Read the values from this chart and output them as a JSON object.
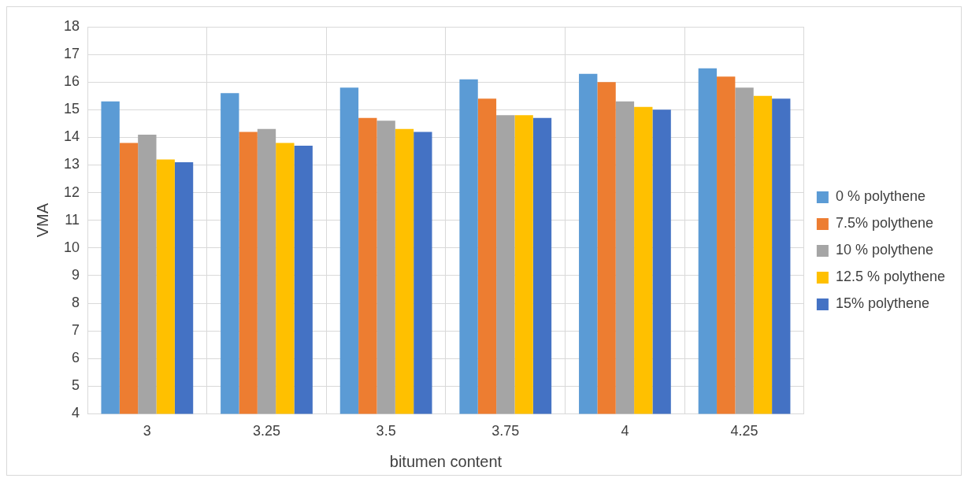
{
  "chart_data": {
    "type": "bar",
    "xlabel": "bitumen content",
    "ylabel": "VMA",
    "categories": [
      "3",
      "3.25",
      "3.5",
      "3.75",
      "4",
      "4.25"
    ],
    "series": [
      {
        "name": "0 % polythene",
        "color": "#5b9bd5",
        "values": [
          15.3,
          15.6,
          15.8,
          16.1,
          16.3,
          16.5
        ]
      },
      {
        "name": "7.5% polythene",
        "color": "#ed7d31",
        "values": [
          13.8,
          14.2,
          14.7,
          15.4,
          16.0,
          16.2
        ]
      },
      {
        "name": "10 % polythene",
        "color": "#a5a5a5",
        "values": [
          14.1,
          14.3,
          14.6,
          14.8,
          15.3,
          15.8
        ]
      },
      {
        "name": "12.5 % polythene",
        "color": "#ffc000",
        "values": [
          13.2,
          13.8,
          14.3,
          14.8,
          15.1,
          15.5
        ]
      },
      {
        "name": "15% polythene",
        "color": "#4472c4",
        "values": [
          13.1,
          13.7,
          14.2,
          14.7,
          15.0,
          15.4
        ]
      }
    ],
    "ylim": [
      4,
      18
    ],
    "yticks": [
      4,
      5,
      6,
      7,
      8,
      9,
      10,
      11,
      12,
      13,
      14,
      15,
      16,
      17,
      18
    ],
    "grid": true,
    "legend": "right"
  }
}
